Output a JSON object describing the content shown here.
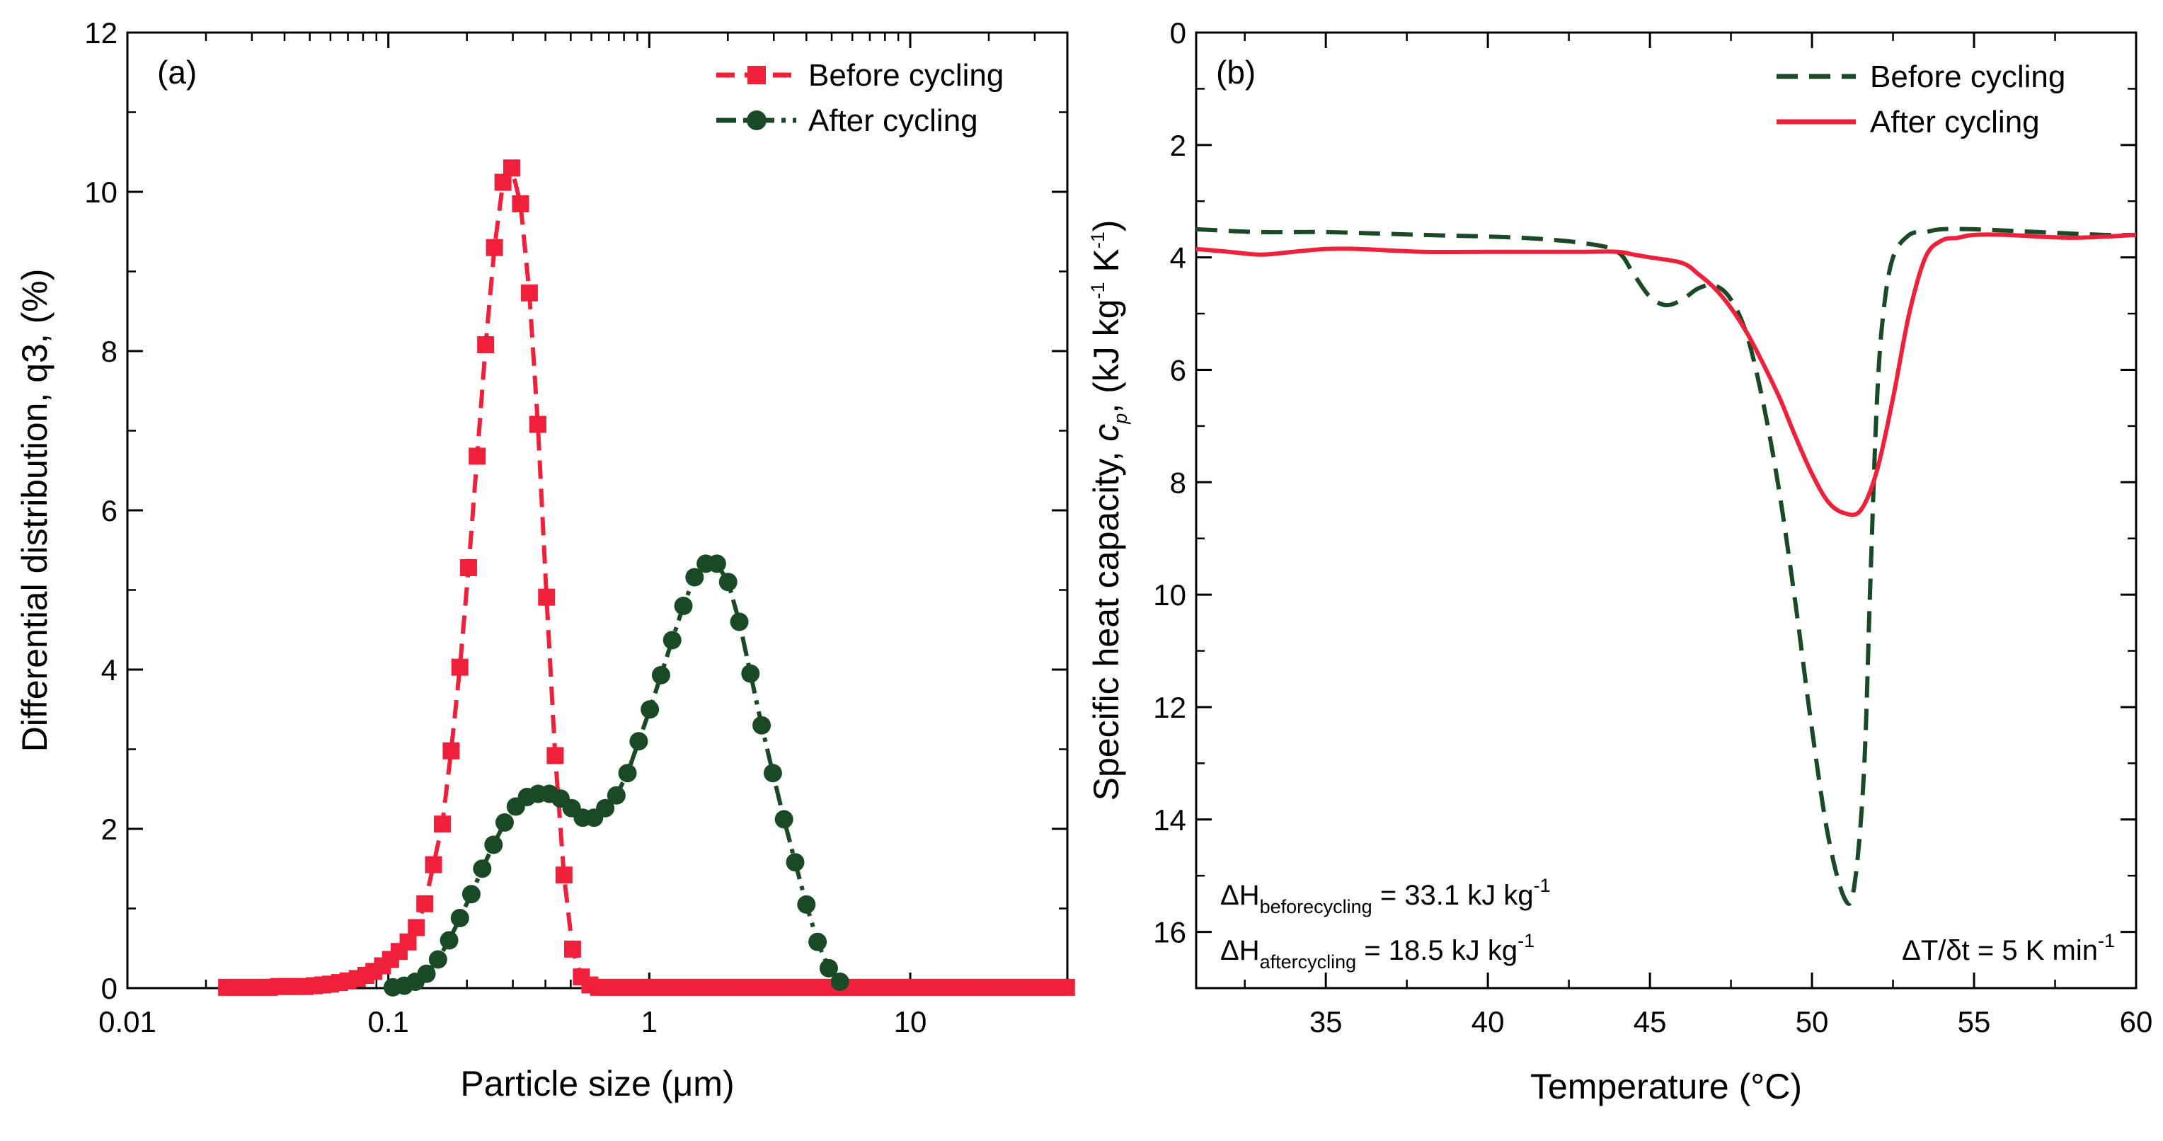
{
  "colors": {
    "before": "#f0203a",
    "after": "#1a4a25",
    "axis": "#000000"
  },
  "chart_data": [
    {
      "id": "a",
      "type": "line",
      "panel_label": "(a)",
      "xlabel": "Particle size (μm)",
      "ylabel": "Differential distribution, q3, (%)",
      "xscale": "log",
      "xlim": [
        0.01,
        40
      ],
      "ylim": [
        0,
        12
      ],
      "xticks": [
        0.01,
        0.1,
        1,
        10
      ],
      "xtick_labels": [
        "0.01",
        "0.1",
        "1",
        "10"
      ],
      "yticks": [
        0,
        2,
        4,
        6,
        8,
        10,
        12
      ],
      "ytick_labels": [
        "0",
        "2",
        "4",
        "6",
        "8",
        "10",
        "12"
      ],
      "legend_position": "top-right",
      "series": [
        {
          "name": "Before cycling",
          "style": "dashed-square",
          "x": [
            0.024,
            0.026,
            0.028,
            0.03,
            0.033,
            0.035,
            0.038,
            0.041,
            0.044,
            0.048,
            0.052,
            0.056,
            0.06,
            0.065,
            0.07,
            0.076,
            0.082,
            0.088,
            0.095,
            0.102,
            0.11,
            0.119,
            0.128,
            0.138,
            0.149,
            0.161,
            0.174,
            0.188,
            0.203,
            0.219,
            0.236,
            0.255,
            0.275,
            0.297,
            0.321,
            0.347,
            0.374,
            0.404,
            0.436,
            0.471,
            0.508,
            0.549,
            0.592,
            0.64,
            0.69,
            0.745,
            0.804,
            0.868,
            0.937,
            1.01,
            1.09,
            1.18,
            1.27,
            1.37,
            1.48,
            1.6,
            1.73,
            1.87,
            2.01,
            2.17,
            2.35,
            2.53,
            2.74,
            2.95,
            3.19,
            3.44,
            3.71,
            4.01,
            4.33,
            4.67,
            5.04,
            5.44,
            5.88,
            6.34,
            6.85,
            7.39,
            7.98,
            8.61,
            9.3,
            10.0,
            10.8,
            11.7,
            12.6,
            13.6,
            14.7,
            15.9,
            17.1,
            18.5,
            20.0,
            21.6,
            23.3,
            25.1,
            27.1,
            29.3,
            31.6,
            34.1,
            36.8,
            39.7
          ],
          "y": [
            0.01,
            0.01,
            0.01,
            0.01,
            0.01,
            0.01,
            0.02,
            0.02,
            0.02,
            0.02,
            0.03,
            0.04,
            0.05,
            0.07,
            0.09,
            0.12,
            0.16,
            0.21,
            0.28,
            0.36,
            0.46,
            0.58,
            0.76,
            1.06,
            1.55,
            2.06,
            2.98,
            4.03,
            5.28,
            6.68,
            8.08,
            9.3,
            10.12,
            10.3,
            9.85,
            8.73,
            7.08,
            4.91,
            2.92,
            1.42,
            0.49,
            0.14,
            0.04,
            0.01,
            0.01,
            0.01,
            0.01,
            0.01,
            0.01,
            0.01,
            0.01,
            0.01,
            0.01,
            0.01,
            0.01,
            0.01,
            0.01,
            0.01,
            0.01,
            0.01,
            0.01,
            0.01,
            0.01,
            0.01,
            0.01,
            0.01,
            0.01,
            0.01,
            0.01,
            0.01,
            0.01,
            0.01,
            0.01,
            0.01,
            0.01,
            0.01,
            0.01,
            0.01,
            0.01,
            0.01,
            0.01,
            0.01,
            0.01,
            0.01,
            0.01,
            0.01,
            0.01,
            0.01,
            0.01,
            0.01,
            0.01,
            0.01,
            0.01,
            0.01,
            0.01,
            0.01,
            0.01,
            0.01
          ]
        },
        {
          "name": "After cycling",
          "style": "dashdot-circle",
          "x": [
            0.104,
            0.115,
            0.127,
            0.14,
            0.155,
            0.171,
            0.188,
            0.208,
            0.229,
            0.253,
            0.279,
            0.308,
            0.34,
            0.375,
            0.414,
            0.457,
            0.504,
            0.556,
            0.614,
            0.678,
            0.748,
            0.825,
            0.911,
            1.005,
            1.109,
            1.224,
            1.351,
            1.491,
            1.646,
            1.816,
            2.005,
            2.213,
            2.442,
            2.695,
            2.975,
            3.283,
            3.624,
            4.0,
            4.415,
            4.873,
            5.379
          ],
          "y": [
            0.01,
            0.03,
            0.08,
            0.18,
            0.36,
            0.6,
            0.88,
            1.18,
            1.5,
            1.8,
            2.08,
            2.28,
            2.4,
            2.44,
            2.44,
            2.38,
            2.26,
            2.14,
            2.14,
            2.26,
            2.42,
            2.7,
            3.1,
            3.5,
            3.93,
            4.37,
            4.8,
            5.16,
            5.33,
            5.33,
            5.1,
            4.6,
            3.95,
            3.3,
            2.7,
            2.12,
            1.58,
            1.05,
            0.58,
            0.25,
            0.08
          ]
        }
      ]
    },
    {
      "id": "b",
      "type": "line",
      "panel_label": "(b)",
      "xlabel": "Temperature (°C)",
      "ylabel_prefix": "Specific heat capacity, ",
      "ylabel_symbol": "c",
      "ylabel_symbol_sub": "p",
      "ylabel_units": ", (kJ kg",
      "ylabel_sup1": "-1",
      "ylabel_mid": " K",
      "ylabel_sup2": "-1",
      "ylabel_end": ")",
      "xlim": [
        31,
        60
      ],
      "ylim": [
        17,
        0
      ],
      "y_inverted": true,
      "xticks": [
        35,
        40,
        45,
        50,
        55,
        60
      ],
      "xtick_labels": [
        "35",
        "40",
        "45",
        "50",
        "55",
        "60"
      ],
      "yticks": [
        0,
        2,
        4,
        6,
        8,
        10,
        12,
        14,
        16
      ],
      "ytick_labels": [
        "0",
        "2",
        "4",
        "6",
        "8",
        "10",
        "12",
        "14",
        "16"
      ],
      "legend_position": "top-right",
      "series": [
        {
          "name": "Before cycling",
          "style": "dashed",
          "x": [
            31,
            33,
            35,
            38,
            41,
            43,
            44,
            44.5,
            45,
            45.5,
            46,
            46.5,
            47,
            47.5,
            48,
            48.5,
            49,
            49.5,
            50,
            50.5,
            51,
            51.3,
            51.6,
            51.8,
            52,
            52.2,
            52.5,
            53,
            53.5,
            54,
            55,
            57,
            59,
            60
          ],
          "y": [
            3.5,
            3.55,
            3.55,
            3.6,
            3.65,
            3.75,
            3.9,
            4.3,
            4.7,
            4.85,
            4.75,
            4.55,
            4.5,
            4.75,
            5.4,
            6.6,
            8.2,
            10.2,
            12.4,
            14.3,
            15.4,
            15.2,
            13.2,
            9.8,
            6.6,
            5.0,
            4.0,
            3.6,
            3.55,
            3.5,
            3.5,
            3.55,
            3.6,
            3.6
          ]
        },
        {
          "name": "After cycling",
          "style": "solid",
          "x": [
            31,
            32,
            33,
            34,
            35,
            36,
            38,
            40,
            42,
            43,
            44,
            44.5,
            45,
            46,
            46.5,
            47,
            47.5,
            48,
            48.5,
            49,
            49.5,
            50,
            50.5,
            51,
            51.5,
            52,
            52.5,
            53,
            53.5,
            54,
            54.5,
            55,
            56,
            58,
            60
          ],
          "y": [
            3.85,
            3.9,
            3.95,
            3.9,
            3.85,
            3.85,
            3.9,
            3.9,
            3.9,
            3.9,
            3.9,
            3.95,
            4.0,
            4.1,
            4.3,
            4.55,
            4.9,
            5.35,
            5.9,
            6.5,
            7.2,
            7.85,
            8.35,
            8.55,
            8.5,
            7.8,
            6.5,
            5.0,
            4.0,
            3.7,
            3.65,
            3.6,
            3.6,
            3.65,
            3.6
          ]
        }
      ],
      "annotations": {
        "dh_before_prefix": "ΔH",
        "dh_before_sub": "beforecycling",
        "dh_before_value": " = 33.1 kJ kg",
        "dh_before_sup": "-1",
        "dh_after_prefix": "ΔH",
        "dh_after_sub": "aftercycling",
        "dh_after_value": " = 18.5 kJ kg",
        "dh_after_sup": "-1",
        "rate_text": "ΔT/δt = 5 K min",
        "rate_sup": "-1"
      }
    }
  ]
}
